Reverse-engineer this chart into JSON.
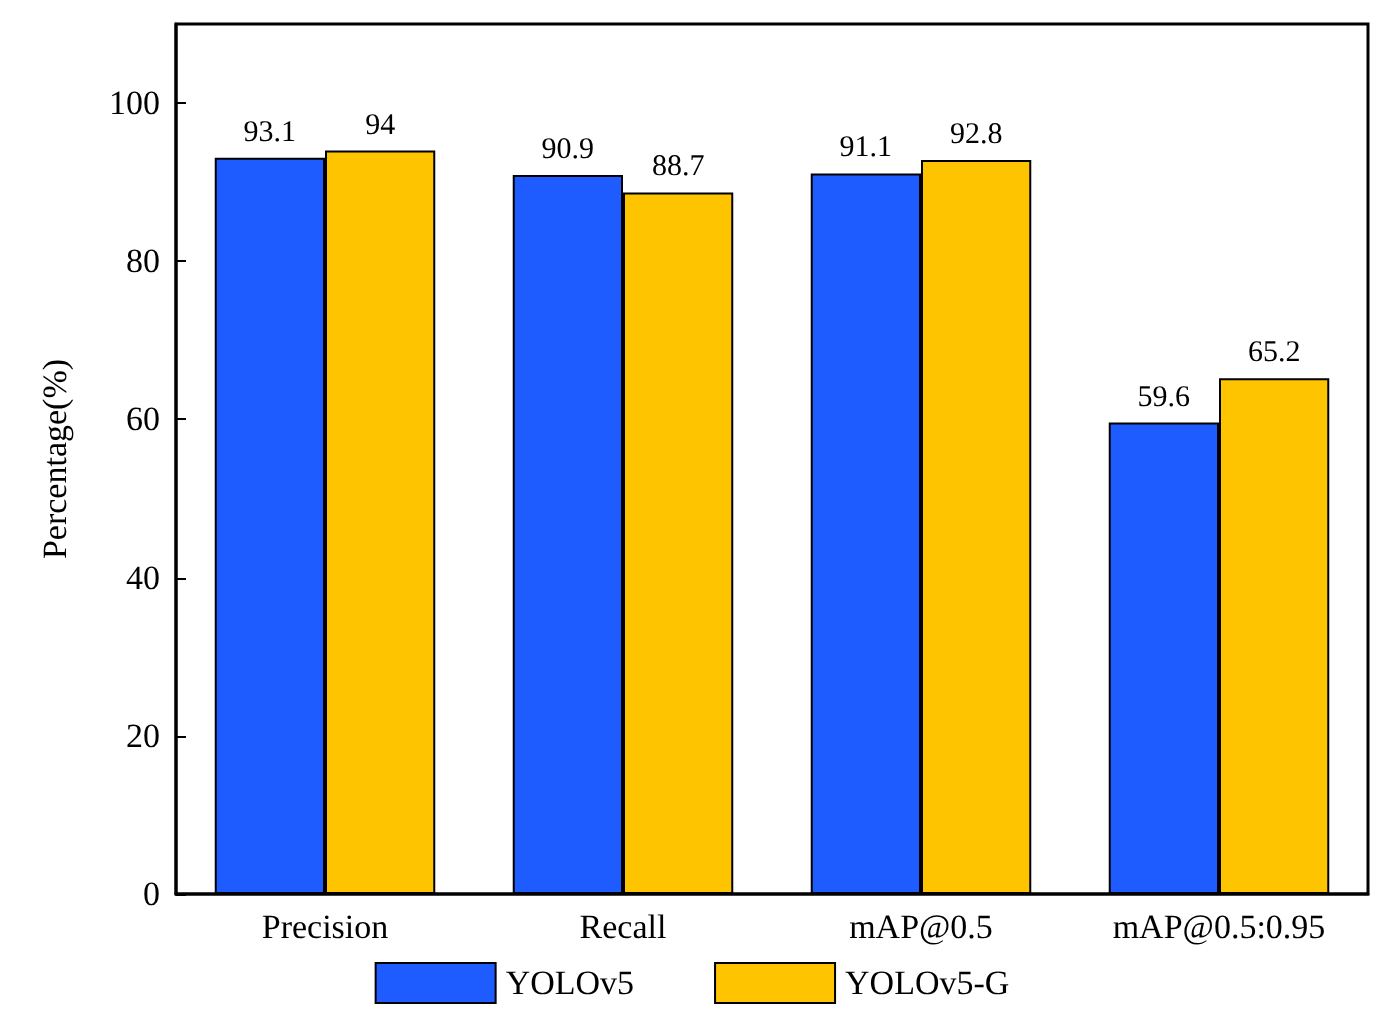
{
  "chart_data": {
    "type": "bar",
    "ylabel": "Percentage(%)",
    "categories": [
      "Precision",
      "Recall",
      "mAP@0.5",
      "mAP@0.5:0.95"
    ],
    "series": [
      {
        "name": "YOLOv5",
        "color": "#1f5cff",
        "values": [
          93.1,
          90.9,
          91.1,
          59.6
        ]
      },
      {
        "name": "YOLOv5-G",
        "color": "#ffc400",
        "values": [
          94,
          88.7,
          92.8,
          65.2
        ]
      }
    ],
    "ylim": [
      0,
      110
    ],
    "yticks": [
      0,
      20,
      40,
      60,
      80,
      100
    ],
    "data_labels": true,
    "legend": "bottom",
    "grid": false
  }
}
